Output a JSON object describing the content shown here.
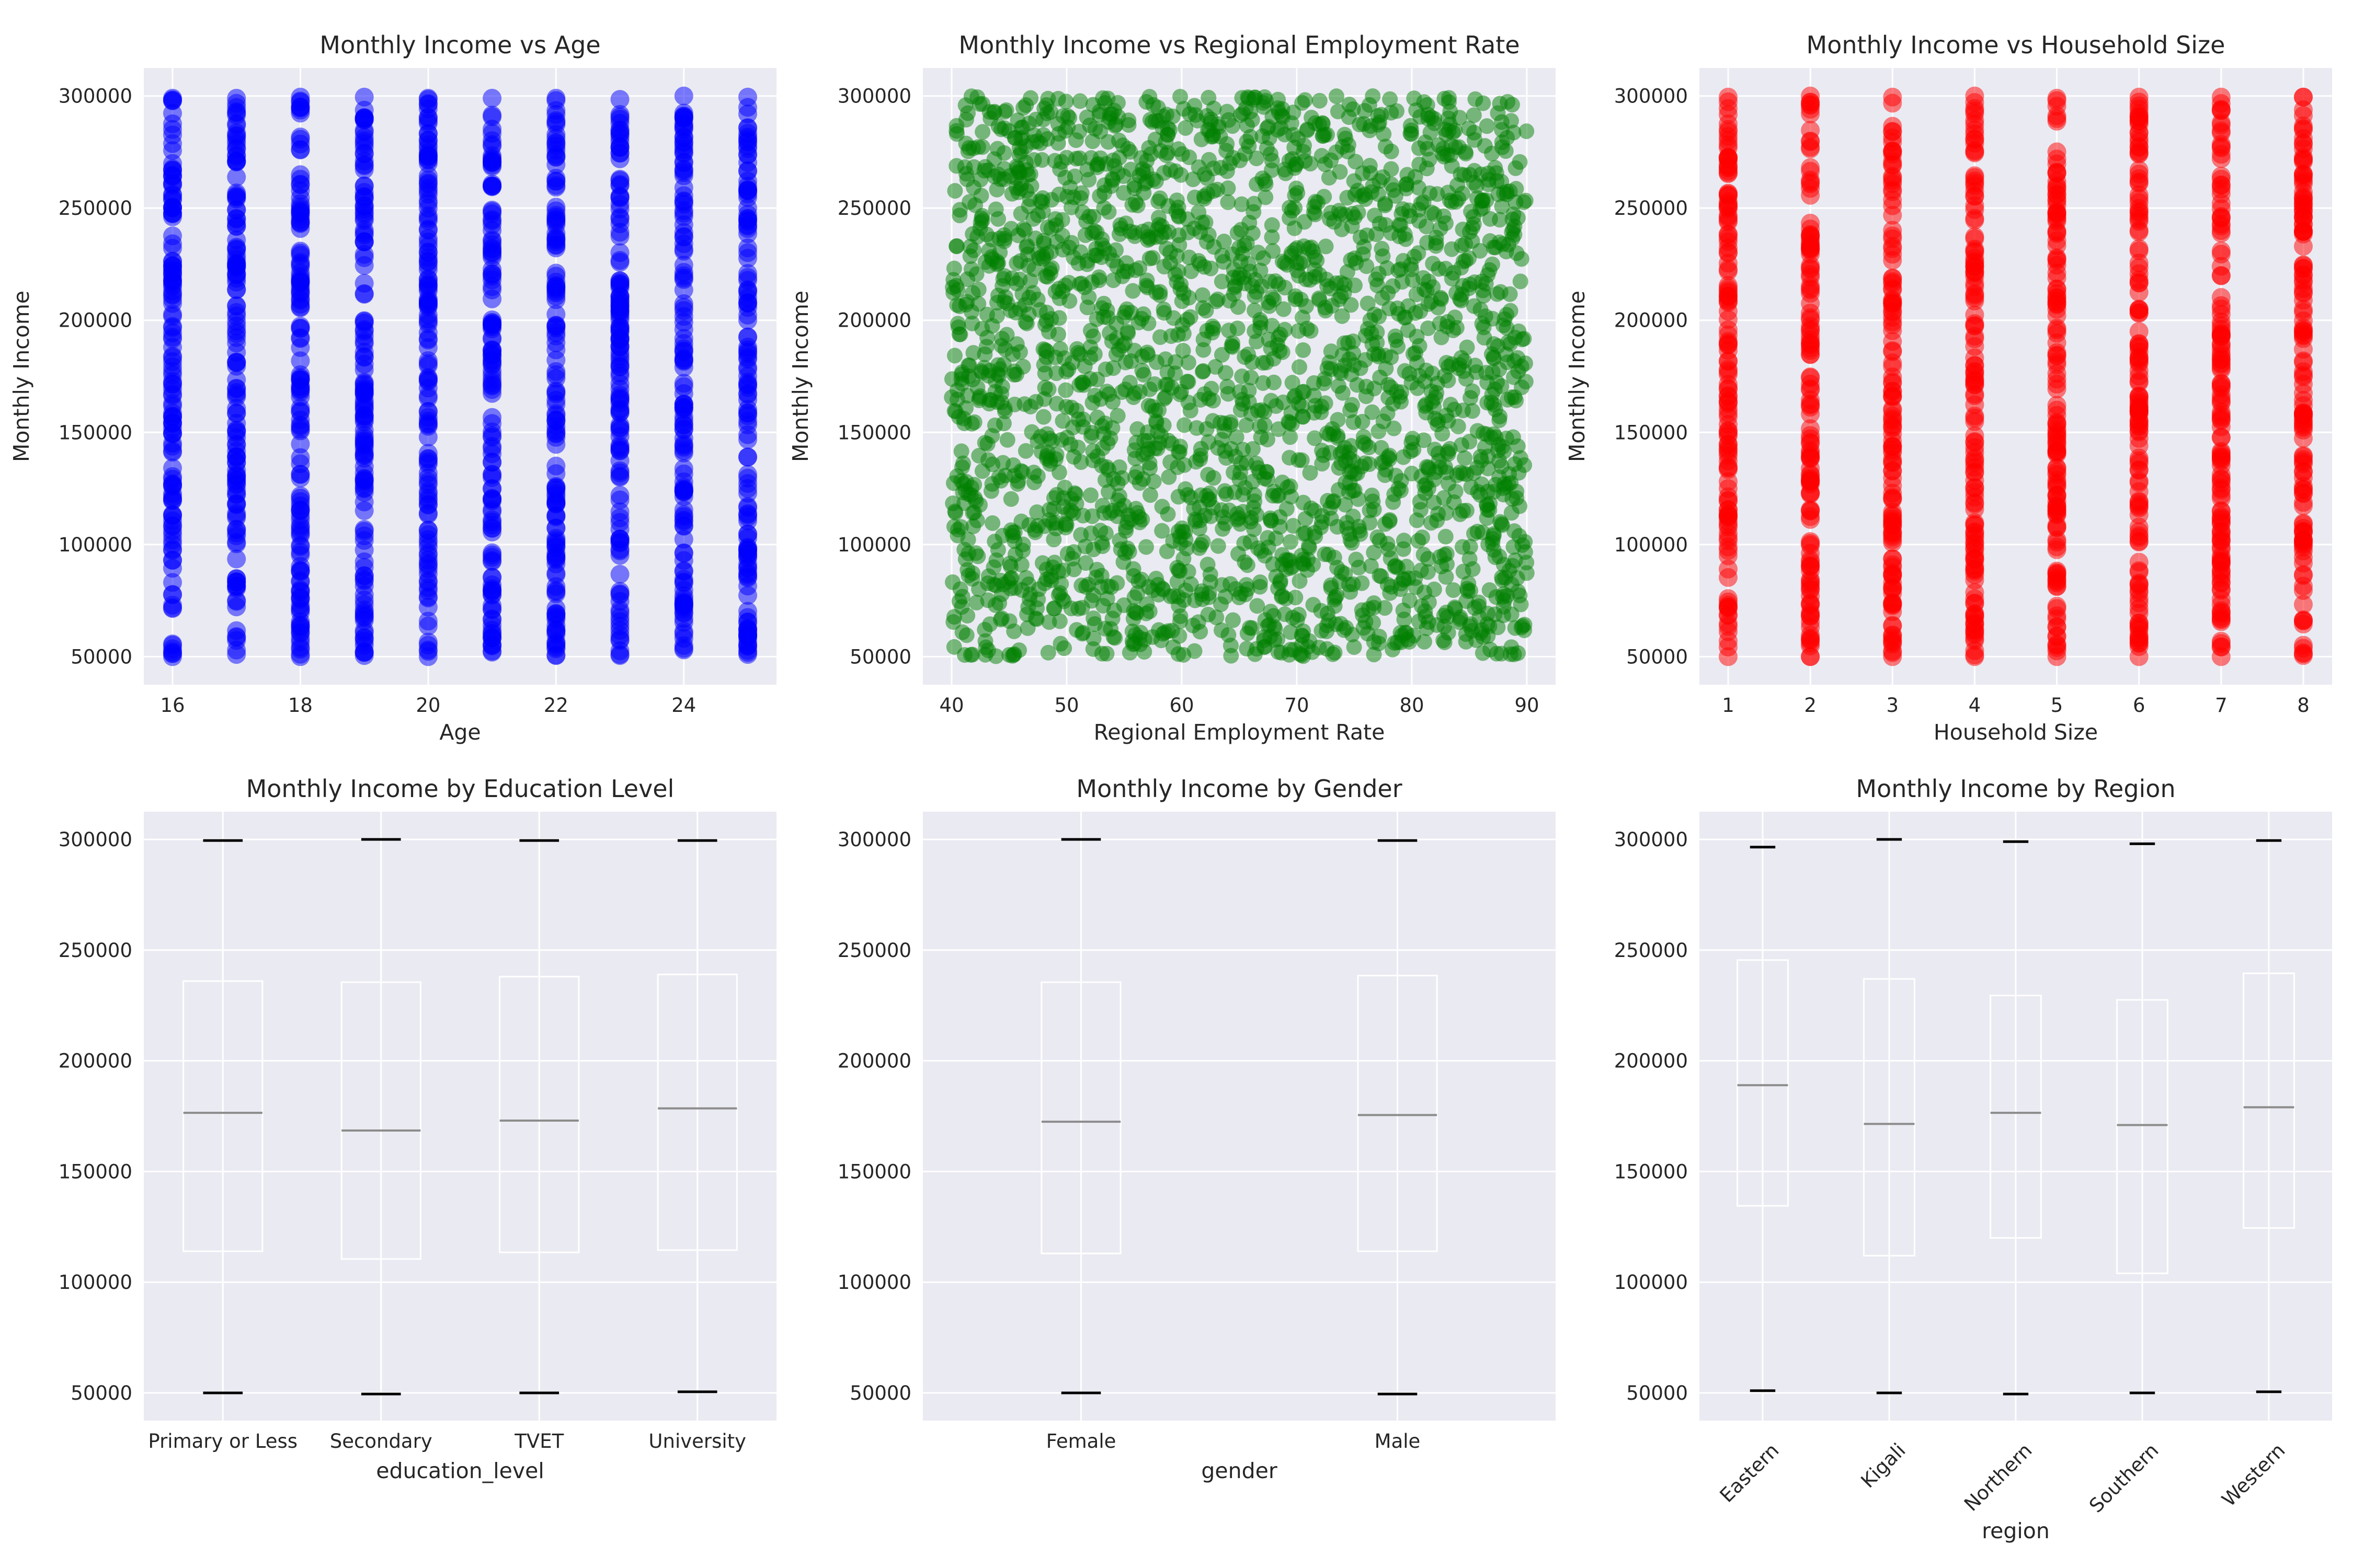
{
  "colors": {
    "axes_background": "#eaeaf2",
    "grid": "#ffffff",
    "age_scatter": "#0000ff",
    "employment_scatter": "#008000",
    "household_scatter": "#ff0000",
    "box_outline": "#ffffff",
    "median": "#8c8c8c",
    "caps": "#000000"
  },
  "chart_data": [
    {
      "type": "scatter",
      "title": "Monthly Income vs Age",
      "xlabel": "Age",
      "ylabel": "Monthly Income",
      "xlim": [
        15.55,
        25.45
      ],
      "ylim": [
        37500,
        312500
      ],
      "xticks": [
        16,
        18,
        20,
        22,
        24
      ],
      "xtick_labels": [
        "16",
        "18",
        "20",
        "22",
        "24"
      ],
      "yticks": [
        50000,
        100000,
        150000,
        200000,
        250000,
        300000
      ],
      "ytick_labels": [
        "50000",
        "100000",
        "150000",
        "200000",
        "250000",
        "300000"
      ],
      "grid": true,
      "marker_alpha": 0.5,
      "x": [
        16,
        17,
        18,
        19,
        20,
        21,
        22,
        23,
        24,
        25
      ],
      "y_min": [
        50000,
        51000,
        50000,
        50500,
        50000,
        52000,
        50500,
        50500,
        53000,
        51000
      ],
      "y_max": [
        299000,
        299000,
        299500,
        299500,
        299000,
        299000,
        299000,
        298500,
        300000,
        299500
      ],
      "note_points": "dense vertical columns of points at each integer age spanning roughly 50000–300000"
    },
    {
      "type": "scatter",
      "title": "Monthly Income vs Regional Employment Rate",
      "xlabel": "Regional Employment Rate",
      "ylabel": "Monthly Income",
      "xlim": [
        37.5,
        92.5
      ],
      "ylim": [
        37500,
        312500
      ],
      "xticks": [
        40,
        50,
        60,
        70,
        80,
        90
      ],
      "xtick_labels": [
        "40",
        "50",
        "60",
        "70",
        "80",
        "90"
      ],
      "yticks": [
        50000,
        100000,
        150000,
        200000,
        250000,
        300000
      ],
      "ytick_labels": [
        "50000",
        "100000",
        "150000",
        "200000",
        "250000",
        "300000"
      ],
      "grid": true,
      "marker_alpha": 0.5,
      "x_range": [
        40,
        90
      ],
      "y_range": [
        50000,
        300000
      ],
      "n_points_approx": 2500
    },
    {
      "type": "scatter",
      "title": "Monthly Income vs Household Size",
      "xlabel": "Household Size",
      "ylabel": "Monthly Income",
      "xlim": [
        0.65,
        8.35
      ],
      "ylim": [
        37500,
        312500
      ],
      "xticks": [
        1,
        2,
        3,
        4,
        5,
        6,
        7,
        8
      ],
      "xtick_labels": [
        "1",
        "2",
        "3",
        "4",
        "5",
        "6",
        "7",
        "8"
      ],
      "yticks": [
        50000,
        100000,
        150000,
        200000,
        250000,
        300000
      ],
      "ytick_labels": [
        "50000",
        "100000",
        "150000",
        "200000",
        "250000",
        "300000"
      ],
      "grid": true,
      "marker_alpha": 0.5,
      "x": [
        1,
        2,
        3,
        4,
        5,
        6,
        7,
        8
      ],
      "y_min": [
        50000,
        50000,
        50000,
        50000,
        50000,
        50000,
        50000,
        50500
      ],
      "y_max": [
        299500,
        300000,
        299500,
        300000,
        299000,
        299500,
        299500,
        299500
      ]
    },
    {
      "type": "box",
      "title": "Monthly Income by Education Level",
      "xlabel": "education_level",
      "ylabel": "",
      "ylim": [
        37500,
        312500
      ],
      "yticks": [
        50000,
        100000,
        150000,
        200000,
        250000,
        300000
      ],
      "ytick_labels": [
        "50000",
        "100000",
        "150000",
        "200000",
        "250000",
        "300000"
      ],
      "grid": true,
      "categories": [
        "Primary or Less",
        "Secondary",
        "TVET",
        "University"
      ],
      "tick_rotation": 0,
      "boxes": [
        {
          "min": 50000,
          "q1": 114000,
          "median": 176500,
          "q3": 236000,
          "max": 299500
        },
        {
          "min": 49500,
          "q1": 110500,
          "median": 168500,
          "q3": 235500,
          "max": 300000
        },
        {
          "min": 50000,
          "q1": 113500,
          "median": 173000,
          "q3": 238000,
          "max": 299500
        },
        {
          "min": 50500,
          "q1": 114500,
          "median": 178500,
          "q3": 239000,
          "max": 299500
        }
      ]
    },
    {
      "type": "box",
      "title": "Monthly Income by Gender",
      "xlabel": "gender",
      "ylabel": "",
      "ylim": [
        37500,
        312500
      ],
      "yticks": [
        50000,
        100000,
        150000,
        200000,
        250000,
        300000
      ],
      "ytick_labels": [
        "50000",
        "100000",
        "150000",
        "200000",
        "250000",
        "300000"
      ],
      "grid": true,
      "categories": [
        "Female",
        "Male"
      ],
      "tick_rotation": 0,
      "boxes": [
        {
          "min": 50000,
          "q1": 113000,
          "median": 172500,
          "q3": 235500,
          "max": 300000
        },
        {
          "min": 49500,
          "q1": 114000,
          "median": 175500,
          "q3": 238500,
          "max": 299500
        }
      ]
    },
    {
      "type": "box",
      "title": "Monthly Income by Region",
      "xlabel": "region",
      "ylabel": "",
      "ylim": [
        37500,
        312500
      ],
      "yticks": [
        50000,
        100000,
        150000,
        200000,
        250000,
        300000
      ],
      "ytick_labels": [
        "50000",
        "100000",
        "150000",
        "200000",
        "250000",
        "300000"
      ],
      "grid": true,
      "categories": [
        "Eastern",
        "Kigali",
        "Northern",
        "Southern",
        "Western"
      ],
      "tick_rotation": 45,
      "boxes": [
        {
          "min": 51000,
          "q1": 134500,
          "median": 189000,
          "q3": 245500,
          "max": 296500
        },
        {
          "min": 50000,
          "q1": 112000,
          "median": 171500,
          "q3": 237000,
          "max": 300000
        },
        {
          "min": 49500,
          "q1": 120000,
          "median": 176500,
          "q3": 229500,
          "max": 299000
        },
        {
          "min": 50000,
          "q1": 104000,
          "median": 171000,
          "q3": 227500,
          "max": 298000
        },
        {
          "min": 50500,
          "q1": 124500,
          "median": 179000,
          "q3": 239500,
          "max": 299500
        }
      ]
    }
  ]
}
